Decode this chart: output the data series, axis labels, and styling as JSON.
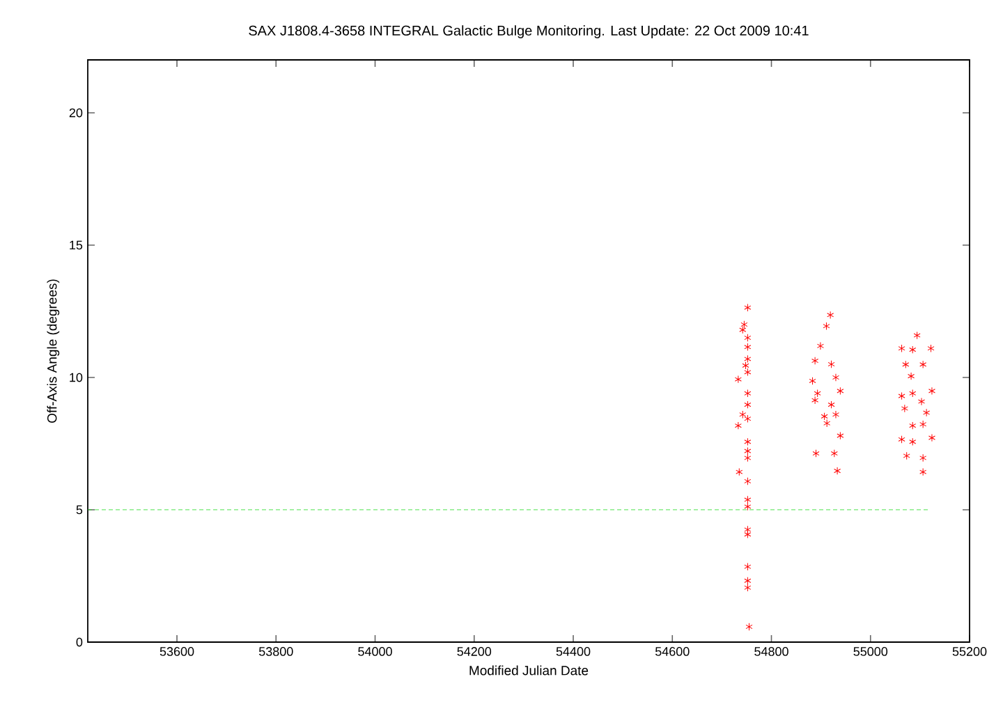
{
  "chart_data": {
    "type": "scatter",
    "title": "SAX J1808.4-3658   INTEGRAL Galactic Bulge Monitoring.  Last Update: 22 Oct 2009 10:41",
    "xlabel": "Modified Julian Date",
    "ylabel": "Off-Axis Angle (degrees)",
    "xlim": [
      53420,
      55200
    ],
    "ylim": [
      0,
      22
    ],
    "xticks": [
      53600,
      53800,
      54000,
      54200,
      54400,
      54600,
      54800,
      55000,
      55200
    ],
    "yticks": [
      0,
      5,
      10,
      15,
      20
    ],
    "grid": false,
    "series": [
      {
        "color": "#ff0000",
        "marker": "cross",
        "x": [
          54752,
          54745,
          54742,
          54752,
          54752,
          54752,
          54748,
          54752,
          54733,
          54752,
          54752,
          54742,
          54752,
          54733,
          54752,
          54752,
          54752,
          54735,
          54752,
          54752,
          54752,
          54752,
          54752,
          54752,
          54752,
          54752,
          54755
        ],
        "values": [
          12.64,
          12.0,
          11.8,
          11.5,
          11.15,
          10.7,
          10.45,
          10.2,
          9.93,
          9.4,
          8.97,
          8.6,
          8.44,
          8.18,
          7.57,
          7.22,
          6.96,
          6.43,
          6.08,
          5.38,
          5.12,
          4.25,
          4.07,
          2.85,
          2.32,
          2.06,
          0.58
        ]
      },
      {
        "color": "#ff0000",
        "marker": "cross",
        "x": [
          54919,
          54911,
          54899,
          54888,
          54921,
          54930,
          54883,
          54939,
          54893,
          54888,
          54921,
          54907,
          54930,
          54912,
          54939,
          54890,
          54927,
          54933
        ],
        "values": [
          12.36,
          11.94,
          11.19,
          10.63,
          10.5,
          10.0,
          9.87,
          9.49,
          9.4,
          9.14,
          8.97,
          8.53,
          8.6,
          8.27,
          7.8,
          7.13,
          7.13,
          6.47
        ]
      },
      {
        "color": "#ff0000",
        "marker": "cross",
        "x": [
          55094,
          55063,
          55085,
          55122,
          55071,
          55106,
          55082,
          55124,
          55085,
          55063,
          55069,
          55103,
          55113,
          55085,
          55106,
          55063,
          55085,
          55124,
          55073,
          55106,
          55106
        ],
        "values": [
          11.59,
          11.1,
          11.05,
          11.1,
          10.49,
          10.49,
          10.05,
          9.49,
          9.4,
          9.3,
          8.83,
          9.09,
          8.67,
          8.18,
          8.23,
          7.66,
          7.57,
          7.72,
          7.04,
          6.96,
          6.43
        ]
      },
      {
        "type": "line",
        "color": "#33dd33",
        "marker": "none",
        "line_style": "dashed",
        "x": [
          53420,
          55118
        ],
        "values": [
          5,
          5
        ]
      }
    ]
  }
}
